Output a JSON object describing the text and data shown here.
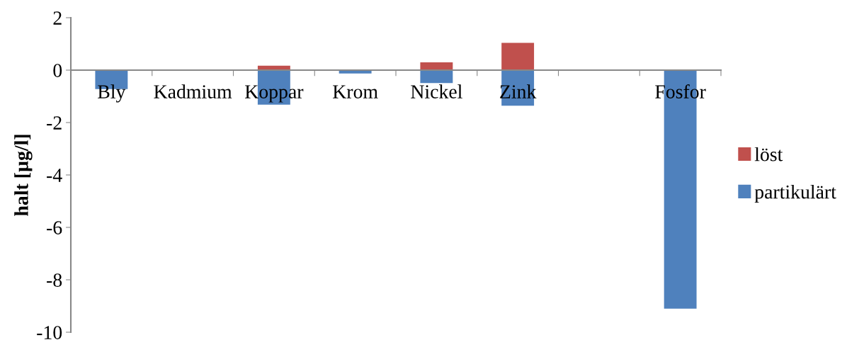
{
  "chart_data": {
    "type": "bar",
    "stacked": true,
    "ylabel": "halt [µg/l]",
    "categories": [
      "Bly",
      "Kadmium",
      "Koppar",
      "Krom",
      "Nickel",
      "Zink",
      null,
      "Fosfor"
    ],
    "series": [
      {
        "name": "partikulärt",
        "color": "#4f81bd",
        "values": [
          -0.72,
          null,
          -1.32,
          -0.13,
          -0.49,
          -1.36,
          null,
          -9.1
        ]
      },
      {
        "name": "löst",
        "color": "#c0504d",
        "values": [
          null,
          null,
          0.17,
          null,
          0.3,
          1.04,
          null,
          null
        ]
      }
    ],
    "ylim": [
      -10,
      2
    ],
    "yticks": [
      -10,
      -8,
      -6,
      -4,
      -2,
      0,
      2
    ],
    "grid": false,
    "legend": "right"
  }
}
